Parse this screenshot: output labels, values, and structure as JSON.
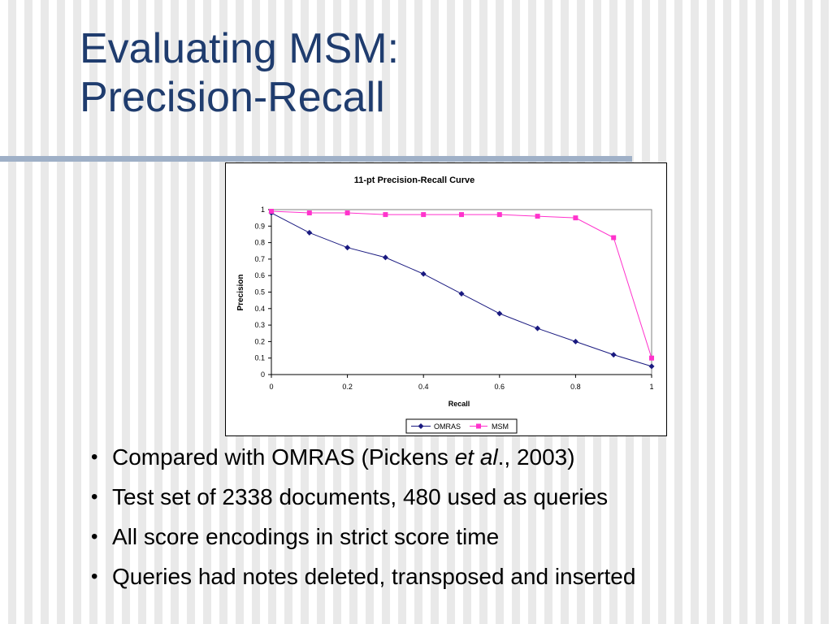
{
  "slide": {
    "title_line1": "Evaluating MSM:",
    "title_line2": "Precision-Recall",
    "bullets": [
      {
        "pre": "Compared with OMRAS (Pickens ",
        "em": "et al",
        "post": "., 2003)"
      },
      {
        "text": "Test set of 2338 documents, 480 used as queries"
      },
      {
        "text": "All score encodings in strict score time"
      },
      {
        "text": "Queries had notes deleted, transposed and inserted"
      }
    ]
  },
  "colors": {
    "title": "#1f3c6e",
    "rule": "#9fb0c7",
    "omras": "#1a1a80",
    "msm": "#ff33cc"
  },
  "chart_data": {
    "type": "line",
    "title": "11-pt Precision-Recall Curve",
    "xlabel": "Recall",
    "ylabel": "Precision",
    "xlim": [
      0,
      1
    ],
    "ylim": [
      0,
      1
    ],
    "x_ticks": [
      "0",
      "0.2",
      "0.4",
      "0.6",
      "0.8",
      "1"
    ],
    "y_ticks": [
      "0",
      "0.1",
      "0.2",
      "0.3",
      "0.4",
      "0.5",
      "0.6",
      "0.7",
      "0.8",
      "0.9",
      "1"
    ],
    "grid": false,
    "legend_position": "bottom",
    "x": [
      0,
      0.1,
      0.2,
      0.3,
      0.4,
      0.5,
      0.6,
      0.7,
      0.8,
      0.9,
      1.0
    ],
    "series": [
      {
        "name": "OMRAS",
        "marker": "diamond",
        "color": "#1a1a80",
        "values": [
          0.98,
          0.86,
          0.77,
          0.71,
          0.61,
          0.49,
          0.37,
          0.28,
          0.2,
          0.12,
          0.05
        ]
      },
      {
        "name": "MSM",
        "marker": "square",
        "color": "#ff33cc",
        "values": [
          0.99,
          0.98,
          0.98,
          0.97,
          0.97,
          0.97,
          0.97,
          0.96,
          0.95,
          0.83,
          0.1
        ]
      }
    ]
  }
}
